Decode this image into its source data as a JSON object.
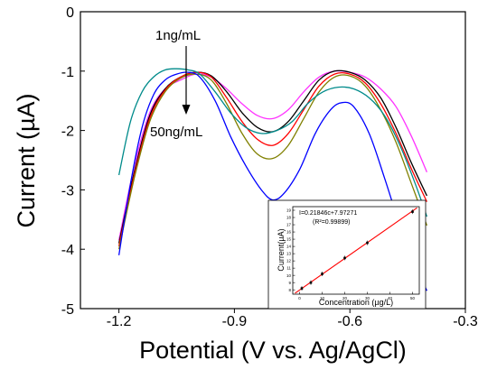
{
  "chart_data": [
    {
      "type": "line",
      "title": "",
      "xlabel": "Potential (V vs. Ag/AgCl)",
      "ylabel": "Current (µA)",
      "xlim": [
        -1.3,
        -0.3
      ],
      "ylim": [
        -5,
        0
      ],
      "x_ticks": [
        "-1.2",
        "-0.9",
        "-0.6",
        "-0.3"
      ],
      "y_ticks": [
        "0",
        "-1",
        "-2",
        "-3",
        "-4",
        "-5"
      ],
      "grid": false,
      "annotations": {
        "top_label": "1ng/mL",
        "bottom_label": "50ng/mL",
        "arrow_direction": "down"
      },
      "series": [
        {
          "color": "#ff33ff",
          "x": [
            -1.2,
            -1.16,
            -1.12,
            -1.08,
            -1.04,
            -1.0,
            -0.96,
            -0.92,
            -0.88,
            -0.84,
            -0.8,
            -0.76,
            -0.72,
            -0.68,
            -0.64,
            -0.6,
            -0.56,
            -0.52,
            -0.48,
            -0.44,
            -0.4
          ],
          "y": [
            -3.85,
            -2.6,
            -1.7,
            -1.3,
            -1.15,
            -1.05,
            -1.1,
            -1.3,
            -1.55,
            -1.75,
            -1.8,
            -1.65,
            -1.35,
            -1.1,
            -1.0,
            -1.02,
            -1.1,
            -1.3,
            -1.6,
            -2.1,
            -2.7
          ]
        },
        {
          "color": "#000000",
          "x": [
            -1.2,
            -1.16,
            -1.12,
            -1.08,
            -1.04,
            -1.0,
            -0.96,
            -0.92,
            -0.88,
            -0.84,
            -0.8,
            -0.76,
            -0.72,
            -0.68,
            -0.64,
            -0.6,
            -0.56,
            -0.52,
            -0.48,
            -0.44,
            -0.4
          ],
          "y": [
            -3.9,
            -2.7,
            -1.75,
            -1.3,
            -1.1,
            -1.02,
            -1.08,
            -1.35,
            -1.7,
            -1.95,
            -2.02,
            -1.85,
            -1.5,
            -1.15,
            -1.0,
            -1.02,
            -1.15,
            -1.45,
            -1.95,
            -2.55,
            -3.1
          ]
        },
        {
          "color": "#ff0000",
          "x": [
            -1.2,
            -1.16,
            -1.12,
            -1.08,
            -1.04,
            -1.0,
            -0.96,
            -0.92,
            -0.88,
            -0.84,
            -0.8,
            -0.76,
            -0.72,
            -0.68,
            -0.64,
            -0.6,
            -0.56,
            -0.52,
            -0.48,
            -0.44,
            -0.4
          ],
          "y": [
            -3.95,
            -2.75,
            -1.8,
            -1.32,
            -1.1,
            -1.02,
            -1.1,
            -1.45,
            -1.85,
            -2.15,
            -2.25,
            -2.05,
            -1.65,
            -1.25,
            -1.05,
            -1.05,
            -1.2,
            -1.55,
            -2.05,
            -2.65,
            -3.2
          ]
        },
        {
          "color": "#808000",
          "x": [
            -1.2,
            -1.16,
            -1.12,
            -1.08,
            -1.04,
            -1.0,
            -0.96,
            -0.92,
            -0.88,
            -0.84,
            -0.8,
            -0.76,
            -0.72,
            -0.68,
            -0.64,
            -0.6,
            -0.56,
            -0.52,
            -0.48,
            -0.44,
            -0.4
          ],
          "y": [
            -4.0,
            -2.8,
            -1.85,
            -1.35,
            -1.12,
            -1.05,
            -1.15,
            -1.55,
            -2.05,
            -2.4,
            -2.47,
            -2.25,
            -1.8,
            -1.35,
            -1.1,
            -1.08,
            -1.25,
            -1.65,
            -2.2,
            -2.9,
            -3.6
          ]
        },
        {
          "color": "#008b8b",
          "x": [
            -1.2,
            -1.17,
            -1.14,
            -1.11,
            -1.08,
            -1.05,
            -1.02,
            -0.99,
            -0.95,
            -0.91,
            -0.87,
            -0.83,
            -0.79,
            -0.75,
            -0.71,
            -0.67,
            -0.63,
            -0.59,
            -0.55,
            -0.51,
            -0.47,
            -0.43,
            -0.4
          ],
          "y": [
            -2.75,
            -1.85,
            -1.35,
            -1.1,
            -0.98,
            -0.96,
            -0.98,
            -1.05,
            -1.35,
            -1.7,
            -1.95,
            -2.05,
            -2.0,
            -1.85,
            -1.55,
            -1.35,
            -1.27,
            -1.3,
            -1.45,
            -1.75,
            -2.25,
            -2.9,
            -3.45
          ]
        },
        {
          "color": "#0000ff",
          "x": [
            -1.2,
            -1.17,
            -1.14,
            -1.11,
            -1.08,
            -1.05,
            -1.02,
            -0.99,
            -0.95,
            -0.91,
            -0.87,
            -0.83,
            -0.8,
            -0.77,
            -0.73,
            -0.69,
            -0.65,
            -0.62,
            -0.59,
            -0.55,
            -0.51,
            -0.47,
            -0.43,
            -0.4
          ],
          "y": [
            -4.1,
            -2.9,
            -1.95,
            -1.4,
            -1.15,
            -1.05,
            -1.02,
            -1.1,
            -1.5,
            -2.1,
            -2.6,
            -3.0,
            -3.17,
            -3.05,
            -2.65,
            -2.05,
            -1.65,
            -1.53,
            -1.6,
            -2.05,
            -2.8,
            -3.6,
            -4.25,
            -4.7
          ]
        }
      ]
    },
    {
      "type": "scatter",
      "title": "",
      "xlabel": "Concentration (µg/L)",
      "ylabel": "Current(µA)",
      "xlim": [
        -3,
        53
      ],
      "ylim": [
        7.4,
        19.5
      ],
      "x_tick_labels": [
        "0",
        "10",
        "20",
        "30",
        "40",
        "50"
      ],
      "y_tick_labels": [
        "8",
        "9",
        "10",
        "11",
        "12",
        "13",
        "14",
        "15",
        "16",
        "17",
        "18",
        "19"
      ],
      "equation": "I=0.21846c+7.97271",
      "r_squared": "(R²=0.99899)",
      "fit": {
        "slope": 0.21846,
        "intercept": 7.97271,
        "color": "#ff0000"
      },
      "points": [
        {
          "x": 1,
          "y": 8.2
        },
        {
          "x": 5,
          "y": 9.0
        },
        {
          "x": 10,
          "y": 10.2
        },
        {
          "x": 20,
          "y": 12.4
        },
        {
          "x": 30,
          "y": 14.5
        },
        {
          "x": 50,
          "y": 18.8
        }
      ]
    }
  ]
}
